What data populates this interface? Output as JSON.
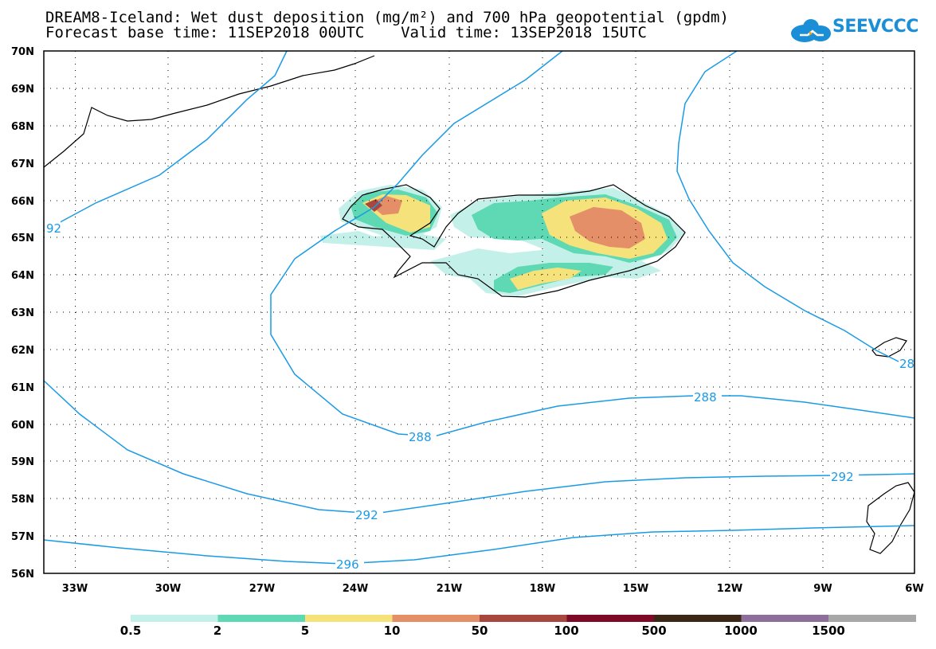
{
  "header": {
    "title_line1": "DREAM8-Iceland: Wet dust deposition (mg/m²) and 700 hPa geopotential (gpdm)",
    "title_line2": "Forecast base time: 11SEP2018 00UTC    Valid time: 13SEP2018 15UTC",
    "logo_text": "SEEVCCC"
  },
  "map": {
    "lat_labels": [
      "70N",
      "69N",
      "68N",
      "67N",
      "66N",
      "65N",
      "64N",
      "63N",
      "62N",
      "61N",
      "60N",
      "59N",
      "58N",
      "57N",
      "56N"
    ],
    "lon_labels": [
      "33W",
      "30W",
      "27W",
      "24W",
      "21W",
      "18W",
      "15W",
      "12W",
      "9W",
      "6W"
    ],
    "contour_labels": [
      "92",
      "288",
      "288",
      "292",
      "292",
      "296",
      "28"
    ],
    "contour_color": "#1a9ae6"
  },
  "legend": {
    "labels": [
      "0.5",
      "2",
      "5",
      "10",
      "50",
      "100",
      "500",
      "1000",
      "1500"
    ],
    "colors": [
      "#c4f0ea",
      "#5ed9b4",
      "#f6e27a",
      "#e48f68",
      "#a8473d",
      "#7d0b28",
      "#3a2716",
      "#8e6f9c",
      "#a8a8a8"
    ]
  }
}
